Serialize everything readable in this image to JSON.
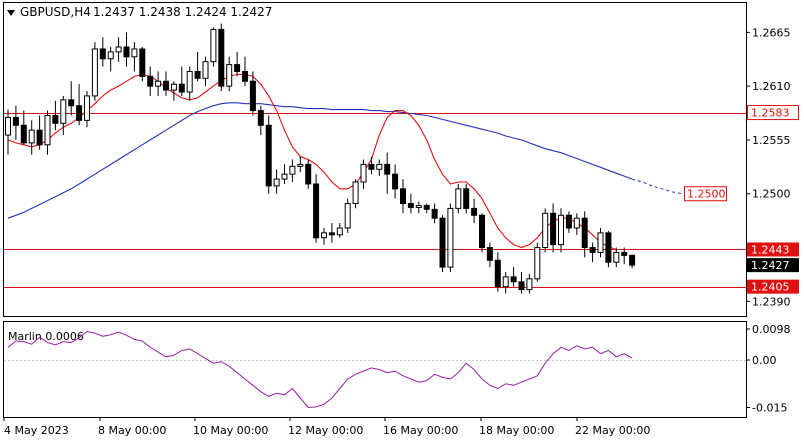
{
  "header": {
    "symbol_tf": "GBPUSD,H4",
    "ohlc": "1.2437 1.2438 1.2424 1.2427"
  },
  "indicator": {
    "label": "Marlin 0.0006"
  },
  "colors": {
    "candle": "#000000",
    "ma_red": "#e01010",
    "ma_blue": "#2233bb",
    "marlin": "#9b1fa8",
    "level": "#e01010",
    "current_price_bg": "#000000"
  },
  "chart_data": [
    {
      "type": "candlestick",
      "price_axis": {
        "ylim": [
          1.2375,
          1.2695
        ],
        "ticks": [
          "1.2665",
          "1.2610",
          "1.2555",
          "1.2500",
          "1.2390"
        ]
      },
      "time_axis": {
        "labels": [
          "4 May 2023",
          "8 May 00:00",
          "10 May 00:00",
          "12 May 00:00",
          "16 May 00:00",
          "18 May 00:00",
          "22 May 00:00"
        ]
      },
      "horizontal_levels": [
        {
          "price": 1.2583,
          "label": "1.2583",
          "style": "boxed"
        },
        {
          "price": 1.2443,
          "label": "1.2443",
          "style": "filled"
        },
        {
          "price": 1.2405,
          "label": "1.2405",
          "style": "filled"
        }
      ],
      "current_price": {
        "price": 1.2427,
        "label": "1.2427"
      },
      "target_label": {
        "price": 1.25,
        "label": "1.2500"
      },
      "candles": [
        [
          1.256,
          1.2586,
          1.254,
          1.2578
        ],
        [
          1.2578,
          1.259,
          1.2555,
          1.257
        ],
        [
          1.257,
          1.2585,
          1.255,
          1.2552
        ],
        [
          1.2552,
          1.2575,
          1.254,
          1.2565
        ],
        [
          1.2565,
          1.258,
          1.2545,
          1.255
        ],
        [
          1.255,
          1.2585,
          1.254,
          1.258
        ],
        [
          1.258,
          1.2595,
          1.2565,
          1.2572
        ],
        [
          1.2572,
          1.26,
          1.256,
          1.2596
        ],
        [
          1.2596,
          1.2615,
          1.258,
          1.259
        ],
        [
          1.259,
          1.2612,
          1.257,
          1.2575
        ],
        [
          1.2575,
          1.2605,
          1.2568,
          1.26
        ],
        [
          1.26,
          1.2655,
          1.2595,
          1.2648
        ],
        [
          1.2648,
          1.266,
          1.263,
          1.2638
        ],
        [
          1.2638,
          1.265,
          1.2625,
          1.2645
        ],
        [
          1.2645,
          1.266,
          1.2635,
          1.265
        ],
        [
          1.265,
          1.2665,
          1.263,
          1.264
        ],
        [
          1.264,
          1.2655,
          1.2625,
          1.2648
        ],
        [
          1.2648,
          1.265,
          1.2615,
          1.262
        ],
        [
          1.262,
          1.263,
          1.26,
          1.261
        ],
        [
          1.261,
          1.2625,
          1.26,
          1.2615
        ],
        [
          1.2615,
          1.2625,
          1.26,
          1.2606
        ],
        [
          1.2606,
          1.2615,
          1.2595,
          1.2612
        ],
        [
          1.2612,
          1.263,
          1.26,
          1.2604
        ],
        [
          1.2604,
          1.263,
          1.2595,
          1.2625
        ],
        [
          1.2625,
          1.2645,
          1.2615,
          1.2618
        ],
        [
          1.2618,
          1.264,
          1.261,
          1.2635
        ],
        [
          1.2635,
          1.267,
          1.263,
          1.2668
        ],
        [
          1.2668,
          1.2674,
          1.2605,
          1.261
        ],
        [
          1.261,
          1.264,
          1.2605,
          1.2632
        ],
        [
          1.2632,
          1.2645,
          1.262,
          1.2625
        ],
        [
          1.2625,
          1.264,
          1.261,
          1.2615
        ],
        [
          1.2615,
          1.2625,
          1.258,
          1.2585
        ],
        [
          1.2585,
          1.259,
          1.256,
          1.257
        ],
        [
          1.257,
          1.258,
          1.25,
          1.2508
        ],
        [
          1.2508,
          1.2525,
          1.25,
          1.2515
        ],
        [
          1.2515,
          1.253,
          1.251,
          1.252
        ],
        [
          1.252,
          1.2535,
          1.2512,
          1.2528
        ],
        [
          1.2528,
          1.2538,
          1.2522,
          1.253
        ],
        [
          1.253,
          1.2535,
          1.2505,
          1.251
        ],
        [
          1.251,
          1.252,
          1.245,
          1.2455
        ],
        [
          1.2455,
          1.2465,
          1.2448,
          1.246
        ],
        [
          1.246,
          1.247,
          1.245,
          1.2458
        ],
        [
          1.2458,
          1.247,
          1.2455,
          1.2465
        ],
        [
          1.2465,
          1.2495,
          1.246,
          1.249
        ],
        [
          1.249,
          1.2515,
          1.2485,
          1.2512
        ],
        [
          1.2512,
          1.2535,
          1.2505,
          1.253
        ],
        [
          1.253,
          1.2538,
          1.252,
          1.2525
        ],
        [
          1.2525,
          1.2535,
          1.2518,
          1.253
        ],
        [
          1.253,
          1.2542,
          1.25,
          1.252
        ],
        [
          1.252,
          1.253,
          1.2495,
          1.2505
        ],
        [
          1.2505,
          1.2515,
          1.248,
          1.249
        ],
        [
          1.249,
          1.25,
          1.248,
          1.2486
        ],
        [
          1.2486,
          1.2492,
          1.248,
          1.2488
        ],
        [
          1.2488,
          1.249,
          1.248,
          1.2484
        ],
        [
          1.2484,
          1.249,
          1.247,
          1.2475
        ],
        [
          1.2475,
          1.2478,
          1.242,
          1.2425
        ],
        [
          1.2425,
          1.249,
          1.242,
          1.2485
        ],
        [
          1.2485,
          1.251,
          1.248,
          1.2505
        ],
        [
          1.2505,
          1.251,
          1.248,
          1.2485
        ],
        [
          1.2485,
          1.2495,
          1.247,
          1.2478
        ],
        [
          1.2478,
          1.248,
          1.244,
          1.2445
        ],
        [
          1.2445,
          1.245,
          1.2425,
          1.2432
        ],
        [
          1.2432,
          1.244,
          1.24,
          1.2405
        ],
        [
          1.2405,
          1.242,
          1.2398,
          1.2415
        ],
        [
          1.2415,
          1.2425,
          1.2405,
          1.241
        ],
        [
          1.241,
          1.242,
          1.2398,
          1.2402
        ],
        [
          1.2402,
          1.2418,
          1.2398,
          1.2413
        ],
        [
          1.2413,
          1.245,
          1.241,
          1.2445
        ],
        [
          1.2445,
          1.2485,
          1.244,
          1.248
        ],
        [
          1.248,
          1.249,
          1.244,
          1.2448
        ],
        [
          1.2448,
          1.2485,
          1.244,
          1.2478
        ],
        [
          1.2478,
          1.2482,
          1.246,
          1.2465
        ],
        [
          1.2465,
          1.248,
          1.2458,
          1.2475
        ],
        [
          1.2475,
          1.2482,
          1.2435,
          1.2445
        ],
        [
          1.2445,
          1.245,
          1.243,
          1.244
        ],
        [
          1.244,
          1.2465,
          1.2435,
          1.246
        ],
        [
          1.246,
          1.2462,
          1.2425,
          1.243
        ],
        [
          1.243,
          1.2445,
          1.2425,
          1.244
        ],
        [
          1.244,
          1.2445,
          1.2428,
          1.2437
        ],
        [
          1.2437,
          1.2438,
          1.2424,
          1.2427
        ]
      ],
      "ma_red": [
        1.2555,
        1.2552,
        1.255,
        1.2548,
        1.255,
        1.2555,
        1.2562,
        1.2568,
        1.2572,
        1.2578,
        1.2585,
        1.2592,
        1.26,
        1.2606,
        1.261,
        1.2615,
        1.262,
        1.2622,
        1.262,
        1.2615,
        1.2608,
        1.2603,
        1.2598,
        1.2596,
        1.2598,
        1.2604,
        1.261,
        1.2616,
        1.262,
        1.2622,
        1.2622,
        1.262,
        1.2612,
        1.26,
        1.2585,
        1.2565,
        1.2548,
        1.2538,
        1.2535,
        1.253,
        1.2522,
        1.2512,
        1.2505,
        1.2505,
        1.251,
        1.2522,
        1.2535,
        1.256,
        1.2578,
        1.2585,
        1.2585,
        1.258,
        1.257,
        1.2555,
        1.2535,
        1.252,
        1.251,
        1.2512,
        1.2512,
        1.2505,
        1.2495,
        1.248,
        1.2465,
        1.2455,
        1.2448,
        1.2445,
        1.2448,
        1.2455,
        1.2465,
        1.2472,
        1.2475,
        1.2475,
        1.247,
        1.2465,
        1.2458,
        1.245,
        1.2446,
        1.2443,
        1.2443,
        1.2443
      ],
      "ma_blue": [
        1.2475,
        1.2478,
        1.2481,
        1.2485,
        1.2489,
        1.2493,
        1.2497,
        1.2501,
        1.2505,
        1.251,
        1.2515,
        1.252,
        1.2525,
        1.253,
        1.2535,
        1.254,
        1.2545,
        1.255,
        1.2555,
        1.256,
        1.2565,
        1.257,
        1.2575,
        1.258,
        1.2584,
        1.2587,
        1.259,
        1.2592,
        1.2593,
        1.2593,
        1.2592,
        1.2592,
        1.2592,
        1.2591,
        1.259,
        1.2589,
        1.2589,
        1.2588,
        1.2587,
        1.2587,
        1.2587,
        1.2586,
        1.2586,
        1.2586,
        1.2586,
        1.2586,
        1.2585,
        1.2585,
        1.2584,
        1.2584,
        1.2583,
        1.2582,
        1.2581,
        1.258,
        1.2578,
        1.2576,
        1.2574,
        1.2572,
        1.257,
        1.2568,
        1.2566,
        1.2564,
        1.2562,
        1.2559,
        1.2557,
        1.2555,
        1.2552,
        1.2549,
        1.2546,
        1.2544,
        1.2542,
        1.2539,
        1.2536,
        1.2533,
        1.253,
        1.2527,
        1.2524,
        1.2521,
        1.2518,
        1.2515
      ],
      "ma_blue_projection": [
        1.2515,
        1.2512,
        1.2508,
        1.2505,
        1.2502,
        1.25
      ]
    },
    {
      "type": "line",
      "title": "Marlin 0.0006",
      "ylim": [
        -0.018,
        0.012
      ],
      "ticks": [
        "0.0098",
        "0.00",
        "-0.015"
      ],
      "values": [
        0.004,
        0.006,
        0.0058,
        0.005,
        0.0072,
        0.0055,
        0.0048,
        0.0058,
        0.0055,
        0.007,
        0.009,
        0.0085,
        0.0075,
        0.008,
        0.0088,
        0.0078,
        0.0065,
        0.006,
        0.004,
        0.0025,
        0.001,
        0.0015,
        0.003,
        0.0035,
        0.002,
        0.0005,
        -0.001,
        -0.0005,
        -0.002,
        -0.004,
        -0.006,
        -0.008,
        -0.01,
        -0.0115,
        -0.0105,
        -0.011,
        -0.009,
        -0.012,
        -0.015,
        -0.0148,
        -0.014,
        -0.012,
        -0.009,
        -0.006,
        -0.0045,
        -0.0035,
        -0.0025,
        -0.003,
        -0.004,
        -0.0035,
        -0.005,
        -0.006,
        -0.007,
        -0.0065,
        -0.0045,
        -0.0055,
        -0.006,
        -0.004,
        -0.001,
        -0.003,
        -0.006,
        -0.008,
        -0.009,
        -0.0075,
        -0.008,
        -0.007,
        -0.006,
        -0.005,
        -0.001,
        0.002,
        0.004,
        0.003,
        0.0045,
        0.0035,
        0.004,
        0.002,
        0.003,
        0.001,
        0.002,
        0.0006
      ]
    }
  ]
}
